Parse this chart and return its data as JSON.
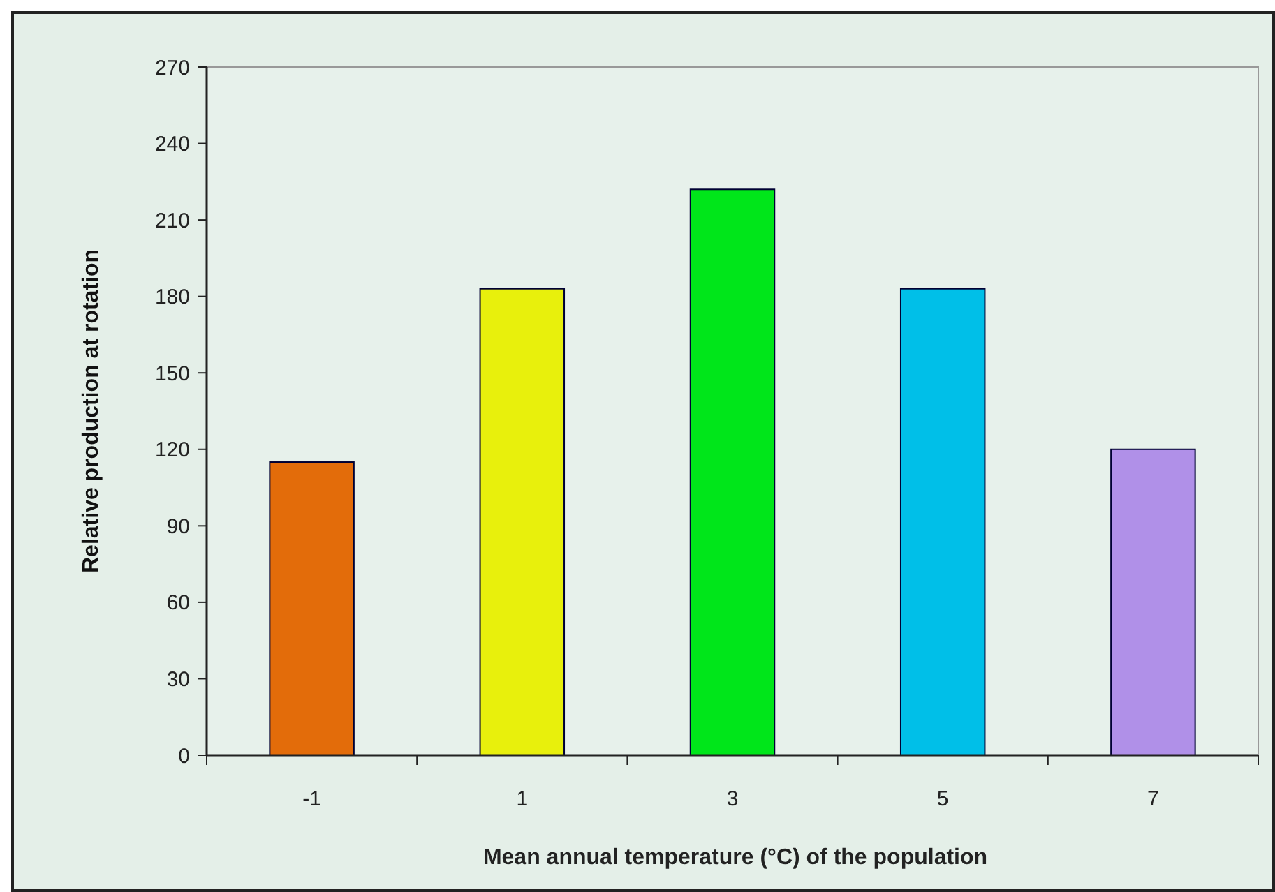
{
  "chart_data": {
    "type": "bar",
    "xlabel": "Mean annual temperature (°C) of the population",
    "ylabel": "Relative production at rotation",
    "categories": [
      "-1",
      "1",
      "3",
      "5",
      "7"
    ],
    "values": [
      115,
      183,
      222,
      183,
      120
    ],
    "colors": [
      "#e36c0a",
      "#e8f00c",
      "#00e61a",
      "#00bfe8",
      "#b090e8"
    ],
    "ylim": [
      0,
      270
    ],
    "yticks": [
      0,
      30,
      60,
      90,
      120,
      150,
      180,
      210,
      240,
      270
    ],
    "grid": false
  }
}
